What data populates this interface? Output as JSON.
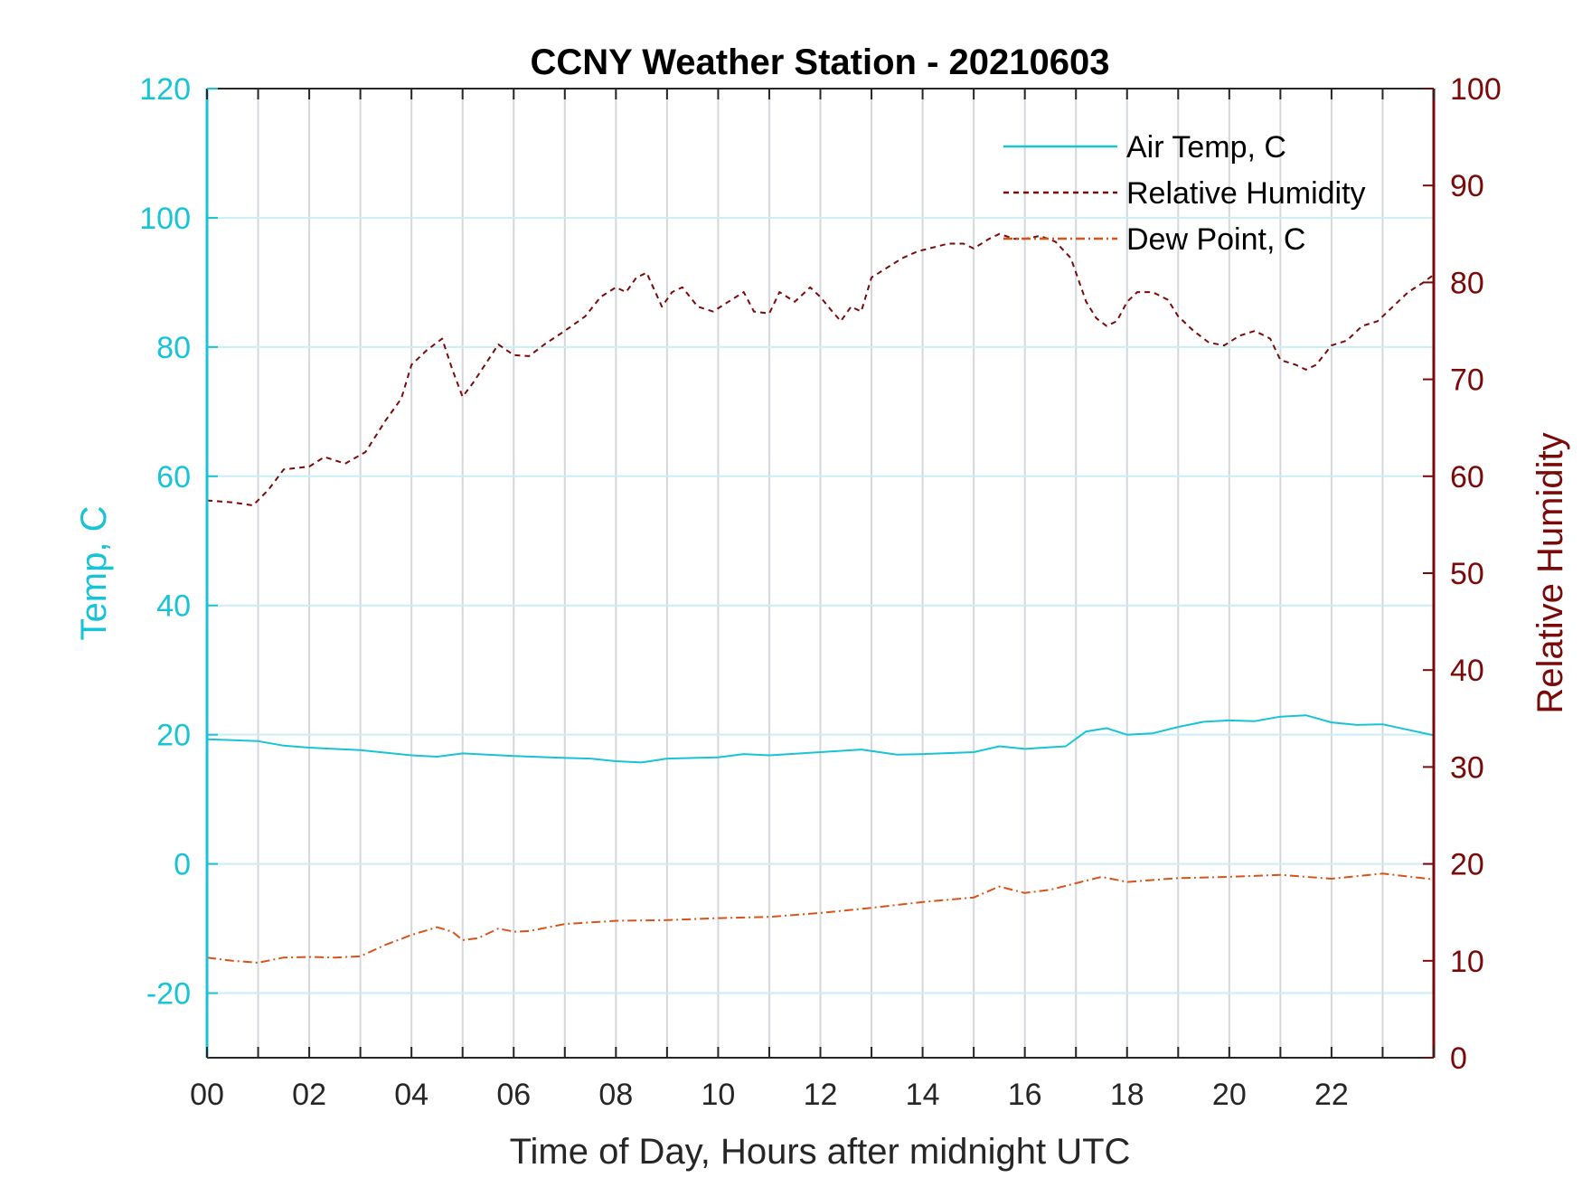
{
  "chart_data": {
    "type": "line",
    "title": "CCNY Weather Station - 20210603",
    "xlabel": "Time of Day, Hours after midnight UTC",
    "ylabel_left": "Temp, C",
    "ylabel_right": "Relative Humidity",
    "xlim": [
      0,
      24
    ],
    "ylim_left": [
      -30,
      120
    ],
    "ylim_right": [
      0,
      100
    ],
    "x_tick_labels": [
      "00",
      "02",
      "04",
      "06",
      "08",
      "10",
      "12",
      "14",
      "16",
      "18",
      "20",
      "22"
    ],
    "y_left_ticks": [
      "120",
      "100",
      "80",
      "60",
      "40",
      "20",
      "0",
      "-20"
    ],
    "y_right_ticks": [
      "100",
      "90",
      "80",
      "70",
      "60",
      "50",
      "40",
      "30",
      "20",
      "10",
      "0"
    ],
    "grid": true,
    "legend_position": "top-right",
    "series": [
      {
        "name": "Air Temp, C",
        "axis": "left",
        "color": "#19c3d6",
        "style": "solid",
        "points": [
          [
            0,
            19.3
          ],
          [
            1,
            19.0
          ],
          [
            1.5,
            18.3
          ],
          [
            2,
            18.0
          ],
          [
            3,
            17.6
          ],
          [
            4,
            16.8
          ],
          [
            4.5,
            16.6
          ],
          [
            5,
            17.1
          ],
          [
            6,
            16.7
          ],
          [
            7,
            16.4
          ],
          [
            7.5,
            16.3
          ],
          [
            8,
            15.9
          ],
          [
            8.5,
            15.7
          ],
          [
            9,
            16.3
          ],
          [
            10,
            16.5
          ],
          [
            10.5,
            17.0
          ],
          [
            11,
            16.8
          ],
          [
            12,
            17.3
          ],
          [
            12.8,
            17.7
          ],
          [
            13.5,
            16.9
          ],
          [
            14,
            17.0
          ],
          [
            15,
            17.3
          ],
          [
            15.5,
            18.2
          ],
          [
            16,
            17.8
          ],
          [
            16.8,
            18.2
          ],
          [
            17.2,
            20.5
          ],
          [
            17.6,
            21.0
          ],
          [
            18,
            20.0
          ],
          [
            18.5,
            20.2
          ],
          [
            19,
            21.2
          ],
          [
            19.5,
            22.0
          ],
          [
            20,
            22.2
          ],
          [
            20.5,
            22.1
          ],
          [
            21,
            22.8
          ],
          [
            21.5,
            23.0
          ],
          [
            22,
            21.9
          ],
          [
            22.5,
            21.5
          ],
          [
            23,
            21.6
          ],
          [
            24,
            19.9
          ]
        ]
      },
      {
        "name": "Relative Humidity",
        "axis": "right",
        "color": "#7a0a0a",
        "style": "dashed",
        "points": [
          [
            0,
            57.5
          ],
          [
            0.5,
            57.3
          ],
          [
            0.9,
            57.0
          ],
          [
            1.2,
            58.6
          ],
          [
            1.5,
            60.7
          ],
          [
            2,
            61.0
          ],
          [
            2.3,
            62.0
          ],
          [
            2.7,
            61.3
          ],
          [
            3.1,
            62.5
          ],
          [
            3.5,
            65.8
          ],
          [
            3.8,
            68.0
          ],
          [
            4,
            71.5
          ],
          [
            4.3,
            73.0
          ],
          [
            4.6,
            74.2
          ],
          [
            4.8,
            71.0
          ],
          [
            5,
            68.2
          ],
          [
            5.2,
            69.6
          ],
          [
            5.5,
            72.0
          ],
          [
            5.7,
            73.6
          ],
          [
            6,
            72.5
          ],
          [
            6.3,
            72.4
          ],
          [
            6.6,
            73.6
          ],
          [
            7,
            75.0
          ],
          [
            7.4,
            76.5
          ],
          [
            7.7,
            78.5
          ],
          [
            8,
            79.5
          ],
          [
            8.2,
            79.0
          ],
          [
            8.4,
            80.5
          ],
          [
            8.6,
            81.0
          ],
          [
            8.9,
            77.5
          ],
          [
            9.1,
            79.0
          ],
          [
            9.3,
            79.5
          ],
          [
            9.6,
            77.5
          ],
          [
            9.9,
            77.0
          ],
          [
            10.2,
            78.0
          ],
          [
            10.5,
            79.0
          ],
          [
            10.7,
            77.0
          ],
          [
            11,
            76.8
          ],
          [
            11.2,
            79.0
          ],
          [
            11.5,
            78.0
          ],
          [
            11.8,
            79.5
          ],
          [
            12,
            78.5
          ],
          [
            12.2,
            77.2
          ],
          [
            12.4,
            76.0
          ],
          [
            12.6,
            77.5
          ],
          [
            12.8,
            77.0
          ],
          [
            13,
            80.5
          ],
          [
            13.3,
            81.5
          ],
          [
            13.6,
            82.5
          ],
          [
            13.9,
            83.2
          ],
          [
            14.2,
            83.6
          ],
          [
            14.5,
            84.0
          ],
          [
            14.8,
            84.0
          ],
          [
            15,
            83.5
          ],
          [
            15.3,
            84.5
          ],
          [
            15.5,
            85.0
          ],
          [
            15.8,
            84.5
          ],
          [
            16,
            84.5
          ],
          [
            16.3,
            84.8
          ],
          [
            16.6,
            84.2
          ],
          [
            16.9,
            82.5
          ],
          [
            17.2,
            78.0
          ],
          [
            17.4,
            76.3
          ],
          [
            17.6,
            75.5
          ],
          [
            17.8,
            76.0
          ],
          [
            18,
            78.0
          ],
          [
            18.2,
            79.0
          ],
          [
            18.5,
            79.0
          ],
          [
            18.8,
            78.2
          ],
          [
            19,
            76.5
          ],
          [
            19.3,
            75.0
          ],
          [
            19.6,
            73.8
          ],
          [
            19.9,
            73.5
          ],
          [
            20.2,
            74.5
          ],
          [
            20.5,
            75.0
          ],
          [
            20.8,
            74.2
          ],
          [
            21,
            72.0
          ],
          [
            21.3,
            71.5
          ],
          [
            21.5,
            71.0
          ],
          [
            21.7,
            71.5
          ],
          [
            22,
            73.5
          ],
          [
            22.3,
            74.0
          ],
          [
            22.6,
            75.5
          ],
          [
            22.9,
            76.0
          ],
          [
            23.2,
            77.5
          ],
          [
            23.5,
            79.0
          ],
          [
            23.8,
            80.0
          ],
          [
            24,
            80.8
          ]
        ]
      },
      {
        "name": "Dew Point, C",
        "axis": "left",
        "color": "#d95319",
        "style": "dashdot",
        "points": [
          [
            0,
            -14.5
          ],
          [
            0.5,
            -15.0
          ],
          [
            1,
            -15.3
          ],
          [
            1.5,
            -14.5
          ],
          [
            2,
            -14.4
          ],
          [
            2.5,
            -14.5
          ],
          [
            3,
            -14.3
          ],
          [
            3.5,
            -12.5
          ],
          [
            4,
            -11.0
          ],
          [
            4.5,
            -9.8
          ],
          [
            4.8,
            -10.5
          ],
          [
            5,
            -11.8
          ],
          [
            5.3,
            -11.5
          ],
          [
            5.7,
            -10.0
          ],
          [
            6,
            -10.5
          ],
          [
            6.3,
            -10.4
          ],
          [
            7,
            -9.3
          ],
          [
            8,
            -8.8
          ],
          [
            9,
            -8.7
          ],
          [
            10,
            -8.4
          ],
          [
            11,
            -8.2
          ],
          [
            12,
            -7.6
          ],
          [
            13,
            -6.8
          ],
          [
            14,
            -5.9
          ],
          [
            15,
            -5.2
          ],
          [
            15.5,
            -3.5
          ],
          [
            16,
            -4.5
          ],
          [
            16.5,
            -4.0
          ],
          [
            17,
            -3.0
          ],
          [
            17.5,
            -2.0
          ],
          [
            18,
            -2.8
          ],
          [
            19,
            -2.2
          ],
          [
            20,
            -2.0
          ],
          [
            21,
            -1.7
          ],
          [
            21.5,
            -2.0
          ],
          [
            22,
            -2.3
          ],
          [
            23,
            -1.5
          ],
          [
            24,
            -2.4
          ]
        ]
      }
    ]
  }
}
